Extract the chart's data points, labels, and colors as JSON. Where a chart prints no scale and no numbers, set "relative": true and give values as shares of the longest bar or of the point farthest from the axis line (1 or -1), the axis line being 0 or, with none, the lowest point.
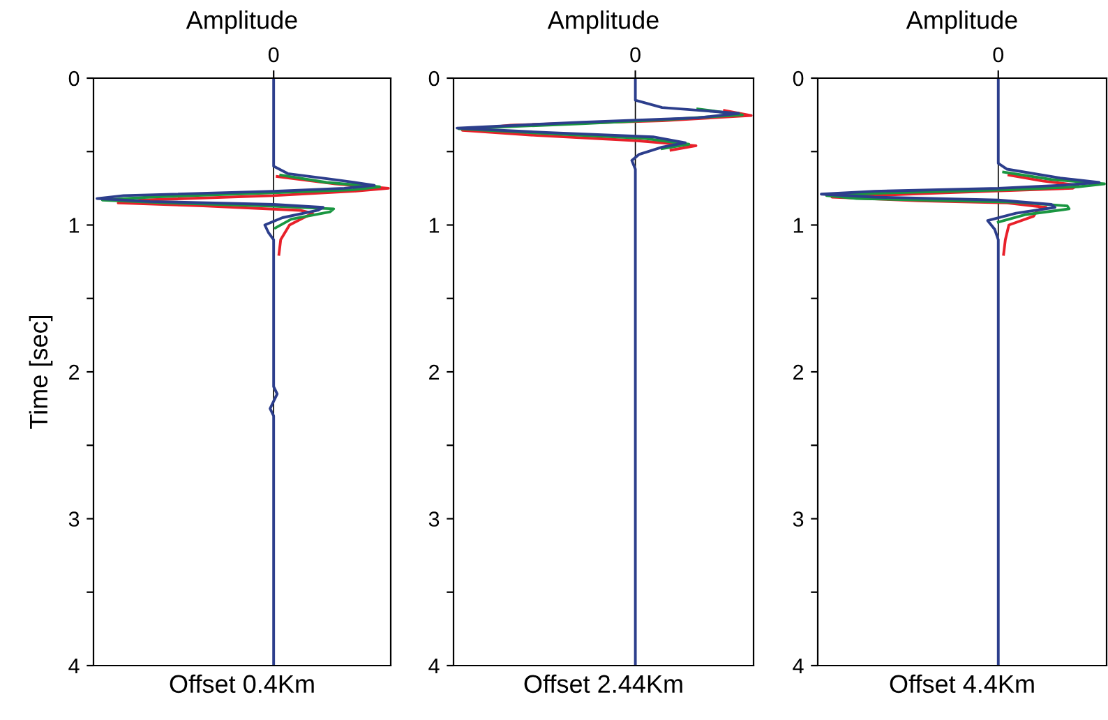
{
  "chart_data": [
    {
      "type": "line",
      "orientation": "horizontal",
      "relative": true,
      "x2label": "Amplitude",
      "annotations": [
        "0"
      ],
      "xlabel": "Offset 0.4Km",
      "ylabel": "Time [sec]",
      "ylim": [
        4,
        0
      ],
      "yticks": [
        0,
        {
          "value": 0.5,
          "label": null
        },
        1,
        {
          "value": 1.5,
          "label": null
        },
        2,
        {
          "value": 2.5,
          "label": null
        },
        3,
        {
          "value": 3.5,
          "label": null
        },
        4
      ],
      "grid": false,
      "legend": false,
      "series": [
        {
          "color": "#e8202a",
          "x": [
            0.67,
            0.72,
            0.75,
            0.77,
            0.8,
            0.83,
            0.85,
            0.87,
            0.9,
            0.92,
            0.95,
            1.0,
            1.1,
            1.2
          ],
          "values": [
            0.02,
            0.35,
            0.65,
            0.45,
            0,
            -0.75,
            -0.88,
            -0.4,
            0.15,
            0.22,
            0.17,
            0.09,
            0.04,
            0.03
          ]
        },
        {
          "color": "#1a9641",
          "x": [
            0.66,
            0.71,
            0.74,
            0.76,
            0.78,
            0.81,
            0.83,
            0.85,
            0.87,
            0.89,
            0.91,
            0.96,
            1.02
          ],
          "values": [
            0.04,
            0.3,
            0.6,
            0.45,
            0,
            -0.7,
            -0.97,
            -0.6,
            -0.05,
            0.34,
            0.32,
            0.1,
            0.01
          ]
        },
        {
          "color": "#2c3e8c",
          "x": [
            0,
            0.6,
            0.65,
            0.7,
            0.73,
            0.75,
            0.77,
            0.8,
            0.82,
            0.84,
            0.86,
            0.88,
            0.9,
            0.95,
            1.0,
            1.05,
            1.1,
            2.1,
            2.15,
            2.2,
            2.25,
            2.3,
            4
          ],
          "values": [
            0,
            0,
            0.08,
            0.4,
            0.57,
            0.4,
            0,
            -0.85,
            -1,
            -0.7,
            0,
            0.28,
            0.25,
            0.05,
            -0.05,
            -0.03,
            0,
            0,
            0.02,
            0,
            -0.02,
            0,
            0
          ]
        }
      ]
    },
    {
      "type": "line",
      "orientation": "horizontal",
      "relative": true,
      "x2label": "Amplitude",
      "annotations": [
        "0"
      ],
      "xlabel": "Offset 2.44Km",
      "ylim": [
        4,
        0
      ],
      "yticks": [
        0,
        {
          "value": 0.5,
          "label": null
        },
        1,
        {
          "value": 1.5,
          "label": null
        },
        2,
        {
          "value": 2.5,
          "label": null
        },
        3,
        {
          "value": 3.5,
          "label": null
        },
        4
      ],
      "grid": false,
      "legend": false,
      "series": [
        {
          "color": "#e8202a",
          "x": [
            0.22,
            0.255,
            0.29,
            0.32,
            0.355,
            0.39,
            0.425,
            0.46,
            0.49
          ],
          "values": [
            0.5,
            0.65,
            0.15,
            -0.7,
            -0.97,
            -0.55,
            0.0,
            0.34,
            0.2
          ]
        },
        {
          "color": "#1a9641",
          "x": [
            0.21,
            0.25,
            0.28,
            0.31,
            0.345,
            0.38,
            0.41,
            0.45,
            0.48
          ],
          "values": [
            0.35,
            0.6,
            0.2,
            -0.3,
            -0.99,
            -0.45,
            0.05,
            0.3,
            0.15
          ]
        },
        {
          "color": "#2c3e8c",
          "x": [
            0,
            0.15,
            0.2,
            0.24,
            0.27,
            0.3,
            0.34,
            0.37,
            0.4,
            0.44,
            0.47,
            0.52,
            0.56,
            0.62,
            4
          ],
          "values": [
            0,
            0,
            0.15,
            0.58,
            0.35,
            -0.3,
            -1,
            -0.5,
            0.1,
            0.28,
            0.15,
            0.02,
            -0.02,
            0,
            0
          ]
        }
      ]
    },
    {
      "type": "line",
      "orientation": "horizontal",
      "relative": true,
      "x2label": "Amplitude",
      "annotations": [
        "0"
      ],
      "xlabel": "Offset 4.4Km",
      "ylim": [
        4,
        0
      ],
      "yticks": [
        0,
        {
          "value": 0.5,
          "label": null
        },
        1,
        {
          "value": 1.5,
          "label": null
        },
        2,
        {
          "value": 2.5,
          "label": null
        },
        3,
        {
          "value": 3.5,
          "label": null
        },
        4
      ],
      "grid": false,
      "legend": false,
      "series": [
        {
          "color": "#e8202a",
          "x": [
            0.66,
            0.7,
            0.73,
            0.75,
            0.78,
            0.81,
            0.835,
            0.85,
            0.88,
            0.9,
            0.94,
            1.0,
            1.1,
            1.2
          ],
          "values": [
            0.06,
            0.25,
            0.45,
            0.42,
            -0.3,
            -0.94,
            -0.45,
            0.05,
            0.27,
            0.22,
            0.2,
            0.06,
            0.04,
            0.03
          ]
        },
        {
          "color": "#1a9641",
          "x": [
            0.64,
            0.69,
            0.72,
            0.74,
            0.76,
            0.785,
            0.8,
            0.82,
            0.845,
            0.87,
            0.89,
            0.93,
            0.98
          ],
          "values": [
            0.03,
            0.3,
            0.6,
            0.45,
            0.05,
            -0.72,
            -0.97,
            -0.8,
            0.1,
            0.39,
            0.4,
            0.15,
            0
          ]
        },
        {
          "color": "#2c3e8c",
          "x": [
            0,
            0.58,
            0.62,
            0.68,
            0.71,
            0.73,
            0.75,
            0.77,
            0.79,
            0.81,
            0.83,
            0.86,
            0.88,
            0.92,
            0.97,
            1.03,
            1.1,
            4
          ],
          "values": [
            0,
            0,
            0.05,
            0.35,
            0.57,
            0.35,
            0,
            -0.7,
            -1,
            -0.7,
            0,
            0.3,
            0.32,
            0.1,
            -0.06,
            -0.02,
            0,
            0
          ]
        }
      ]
    }
  ]
}
